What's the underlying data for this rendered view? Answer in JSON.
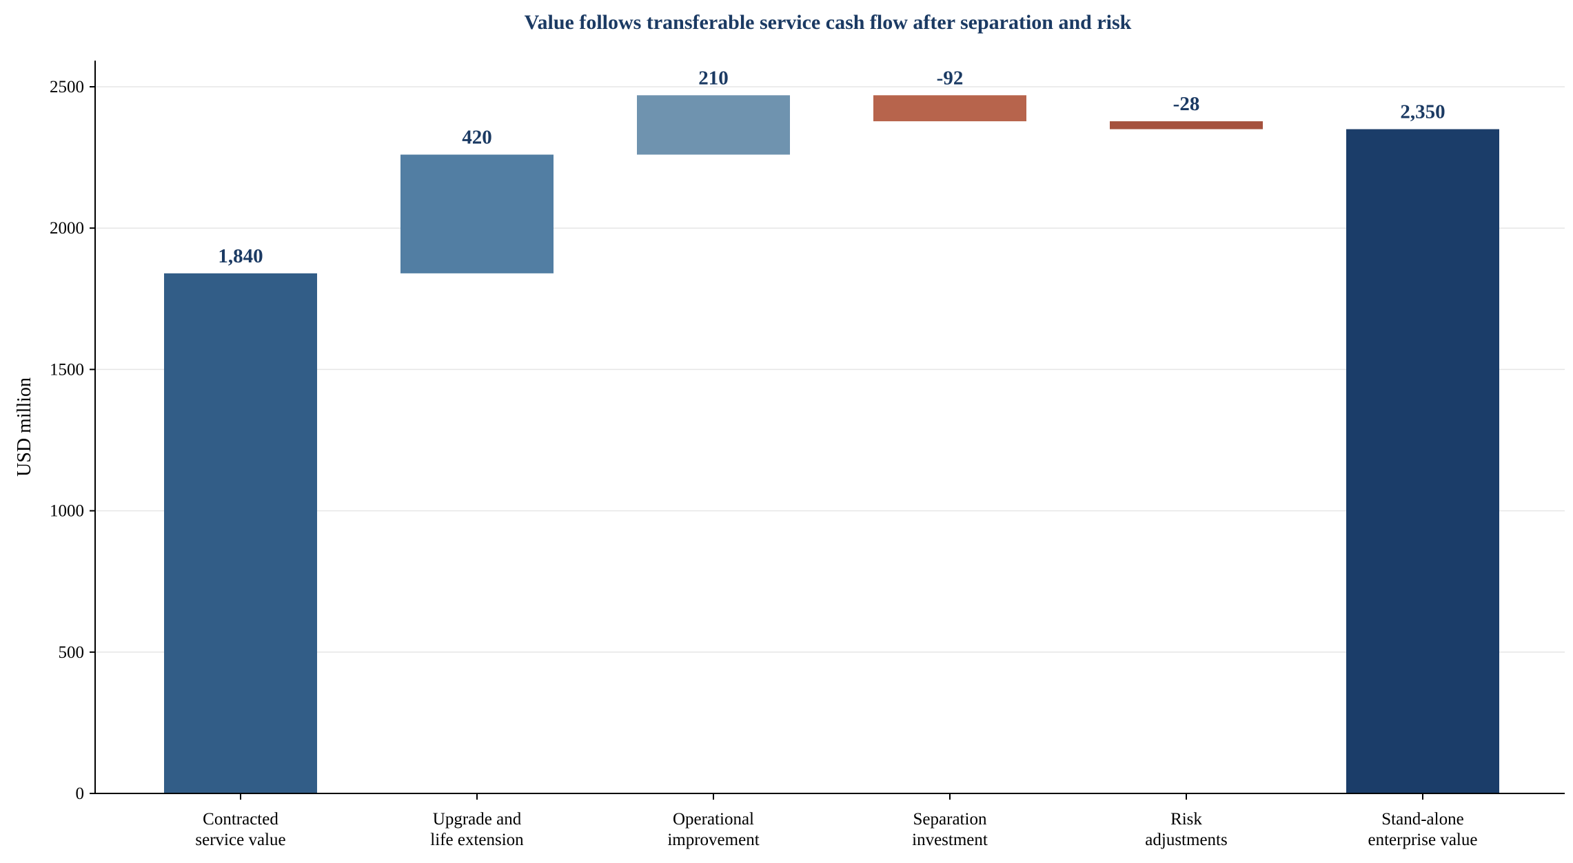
{
  "chart_data": {
    "type": "bar",
    "subtype": "waterfall",
    "title": "Value follows transferable service cash flow after separation and risk",
    "xlabel": "",
    "ylabel": "USD million",
    "ylim": [
      0,
      2600
    ],
    "yticks": [
      0,
      500,
      1000,
      1500,
      2000,
      2500
    ],
    "grid": "horizontal",
    "legend": "none",
    "categories": [
      [
        "Contracted",
        "service value"
      ],
      [
        "Upgrade and",
        "life extension"
      ],
      [
        "Operational",
        "improvement"
      ],
      [
        "Separation",
        "investment"
      ],
      [
        "Risk",
        "adjustments"
      ],
      [
        "Stand-alone",
        "enterprise value"
      ]
    ],
    "steps": [
      {
        "kind": "total",
        "value": 1840,
        "label": "1,840",
        "color": "#325d87"
      },
      {
        "kind": "delta",
        "value": 420,
        "label": "420",
        "color": "#527ea3"
      },
      {
        "kind": "delta",
        "value": 210,
        "label": "210",
        "color": "#6f93af"
      },
      {
        "kind": "delta",
        "value": -92,
        "label": "-92",
        "color": "#b7644c"
      },
      {
        "kind": "delta",
        "value": -28,
        "label": "-28",
        "color": "#a5523e"
      },
      {
        "kind": "total",
        "value": 2350,
        "label": "2,350",
        "color": "#1b3d69"
      }
    ]
  }
}
